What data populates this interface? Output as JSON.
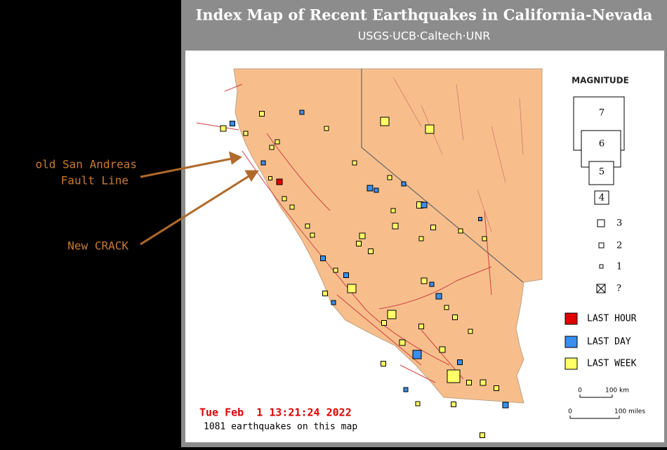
{
  "header": {
    "title": "Index Map of Recent Earthquakes in California-Nevada",
    "subtitle": "USGS·UCB·Caltech·UNR"
  },
  "annotations": {
    "fault_line": [
      "old San Andreas",
      "Fault Line"
    ],
    "crack": "New CRACK"
  },
  "legend": {
    "title": "MAGNITUDE",
    "magnitudes": [
      7,
      6,
      5,
      4,
      3,
      2,
      1,
      "?"
    ],
    "age": [
      "LAST HOUR",
      "LAST DAY",
      "LAST WEEK"
    ]
  },
  "scale": {
    "km": [
      "0",
      "100 km"
    ],
    "miles": [
      "0",
      "100 miles"
    ]
  },
  "footer": {
    "timestamp": "Tue Feb  1 13:21:24 2022",
    "count": "1081 earthquakes on this map"
  }
}
